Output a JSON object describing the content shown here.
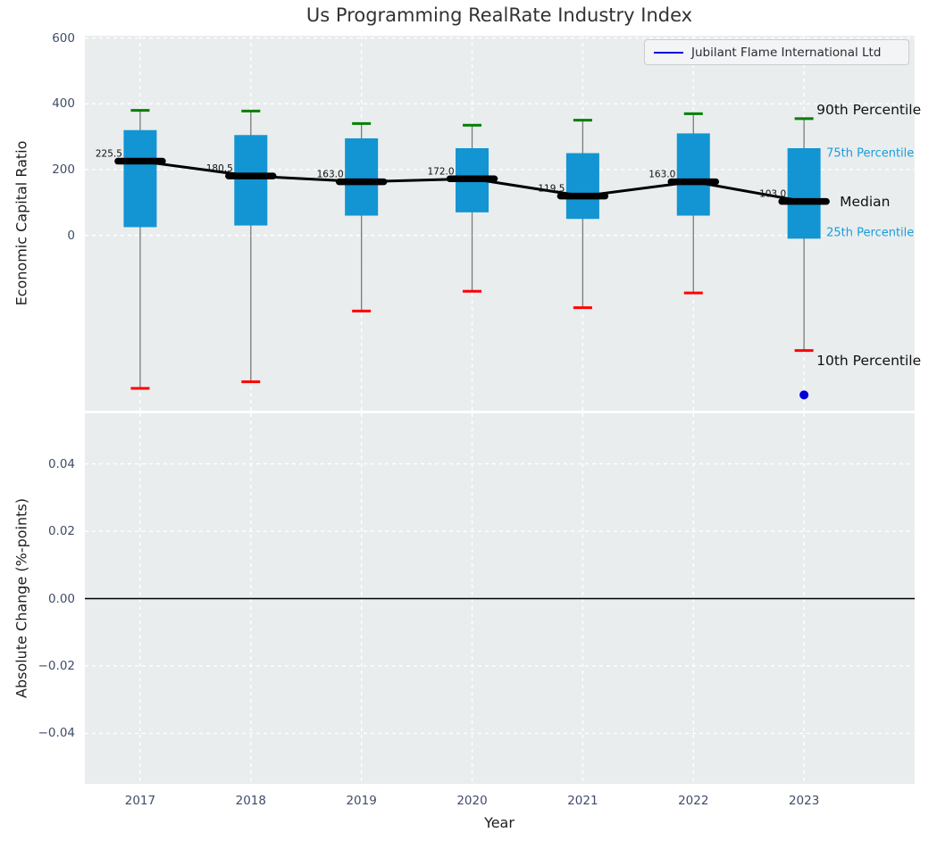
{
  "chart_data": {
    "type": "box",
    "title": "Us Programming RealRate Industry Index",
    "xlabel": "Year",
    "xlim": [
      2016.5,
      2024.0
    ],
    "grid": "white-dashed",
    "legend": {
      "label": "Jubilant Flame International Ltd",
      "position": "upper right",
      "line_color": "#0000dd"
    },
    "panels": [
      {
        "name": "economic-capital-ratio",
        "ylabel": "Economic Capital Ratio",
        "ylim": [
          -533,
          607
        ],
        "yticks": [
          600,
          400,
          200,
          0
        ],
        "ytick_labels": [
          "600",
          "400",
          "200",
          "0"
        ],
        "categories": [
          "2017",
          "2018",
          "2019",
          "2020",
          "2021",
          "2022",
          "2023"
        ],
        "years": [
          2017,
          2018,
          2019,
          2020,
          2021,
          2022,
          2023
        ],
        "boxes": [
          {
            "year": 2017,
            "p10": -465,
            "p25": 25,
            "median": 225.5,
            "p75": 320,
            "p90": 380,
            "median_label": "225.5"
          },
          {
            "year": 2018,
            "p10": -445,
            "p25": 30,
            "median": 180.5,
            "p75": 305,
            "p90": 378,
            "median_label": "180.5"
          },
          {
            "year": 2019,
            "p10": -230,
            "p25": 60,
            "median": 163.0,
            "p75": 295,
            "p90": 340,
            "median_label": "163.0"
          },
          {
            "year": 2020,
            "p10": -170,
            "p25": 70,
            "median": 172.0,
            "p75": 265,
            "p90": 335,
            "median_label": "172.0"
          },
          {
            "year": 2021,
            "p10": -220,
            "p25": 50,
            "median": 119.5,
            "p75": 250,
            "p90": 350,
            "median_label": "119.5"
          },
          {
            "year": 2022,
            "p10": -175,
            "p25": 60,
            "median": 163.0,
            "p75": 310,
            "p90": 370,
            "median_label": "163.0"
          },
          {
            "year": 2023,
            "p10": -350,
            "p25": -10,
            "median": 103.0,
            "p75": 265,
            "p90": 355,
            "median_label": "103.0"
          }
        ],
        "company_points": [
          {
            "year": 2023,
            "value": -485
          }
        ],
        "percentile_labels": {
          "p90": "90th Percentile",
          "p75": "75th Percentile",
          "median": "Median",
          "p25": "25th Percentile",
          "p10": "10th Percentile"
        }
      },
      {
        "name": "absolute-change",
        "ylabel": "Absolute Change (%-points)",
        "ylim": [
          -0.055,
          0.055
        ],
        "yticks": [
          0.04,
          0.02,
          0.0,
          -0.02,
          -0.04
        ],
        "ytick_labels": [
          "0.04",
          "0.02",
          "0.00",
          "−0.02",
          "−0.04"
        ],
        "zero_line": 0.0
      }
    ],
    "colors": {
      "box_fill": "#1295d2",
      "whisker": "#7a7a7a",
      "p90_cap": "#008000",
      "p10_cap": "#ff0000",
      "median": "#000000",
      "company": "#0000dd",
      "plot_bg": "#e9edee",
      "gridline": "#ffffff",
      "tick_label": "#3f4d68",
      "annotation_blue": "#189ddb"
    }
  }
}
